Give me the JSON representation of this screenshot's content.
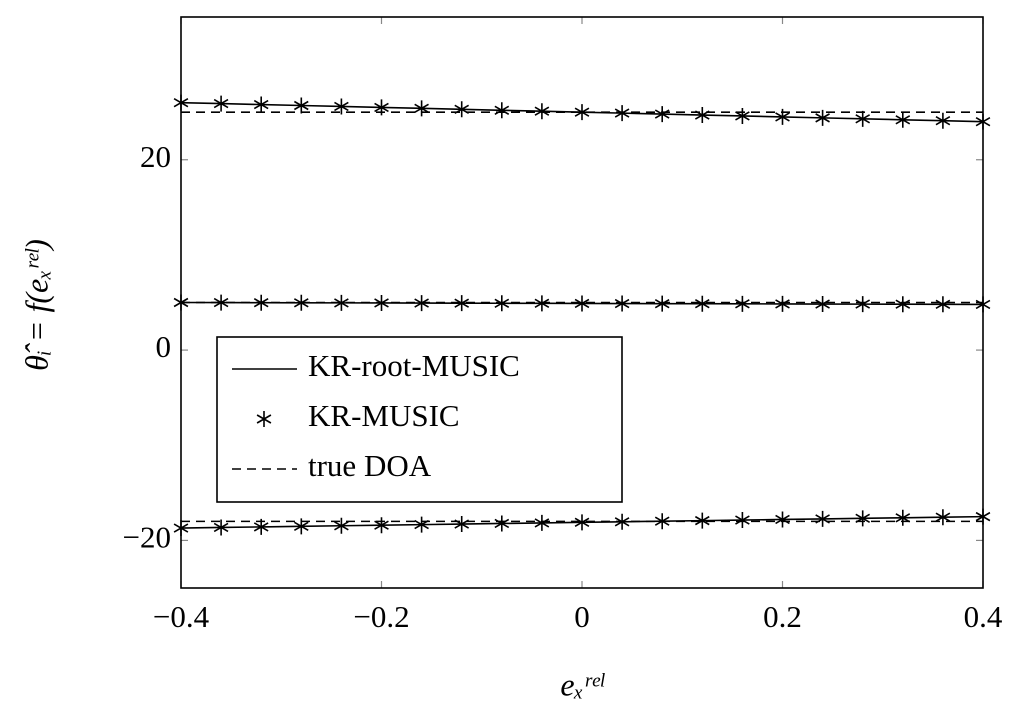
{
  "chart_data": {
    "type": "line",
    "xlabel": "eₓʳᵉˡ",
    "ylabel": "θ̂ᵢ = f(eₓʳᵉˡ)",
    "x": [
      -0.4,
      -0.36,
      -0.32,
      -0.28,
      -0.24,
      -0.2,
      -0.16,
      -0.12,
      -0.08,
      -0.04,
      0,
      0.04,
      0.08,
      0.12,
      0.16,
      0.2,
      0.24,
      0.28,
      0.32,
      0.36,
      0.4
    ],
    "xlim": [
      -0.4,
      0.4
    ],
    "xticks": [
      {
        "value": -0.4,
        "label": "−0.4"
      },
      {
        "value": -0.2,
        "label": "−0.2"
      },
      0,
      0.2,
      0.4
    ],
    "ylim": [
      -25,
      35
    ],
    "yticks": [
      {
        "value": -20,
        "label": "−20"
      },
      0,
      20
    ],
    "legend": "lower left",
    "series": [
      {
        "name": "KR-root-MUSIC",
        "color": "#000000",
        "style": "solid",
        "values": [
          [
            26,
            25.9,
            25.8,
            25.7,
            25.6,
            25.5,
            25.4,
            25.3,
            25.2,
            25.1,
            25,
            24.9,
            24.8,
            24.7,
            24.6,
            24.5,
            24.4,
            24.3,
            24.2,
            24.1,
            24
          ],
          [
            5,
            4.99,
            4.98,
            4.97,
            4.96,
            4.95,
            4.94,
            4.93,
            4.92,
            4.91,
            4.9,
            4.89,
            4.88,
            4.87,
            4.86,
            4.85,
            4.84,
            4.83,
            4.82,
            4.81,
            4.8
          ],
          [
            -18.7,
            -18.64,
            -18.58,
            -18.52,
            -18.46,
            -18.4,
            -18.34,
            -18.28,
            -18.22,
            -18.16,
            -18.1,
            -18.04,
            -17.98,
            -17.92,
            -17.86,
            -17.8,
            -17.74,
            -17.68,
            -17.62,
            -17.56,
            -17.5
          ]
        ]
      },
      {
        "name": "KR-MUSIC",
        "color": "#000000",
        "style": "marker",
        "values": [
          [
            26,
            25.9,
            25.8,
            25.7,
            25.6,
            25.5,
            25.4,
            25.3,
            25.2,
            25.1,
            25,
            24.9,
            24.8,
            24.7,
            24.6,
            24.5,
            24.4,
            24.3,
            24.2,
            24.1,
            24
          ],
          [
            5,
            4.99,
            4.98,
            4.97,
            4.96,
            4.95,
            4.94,
            4.93,
            4.92,
            4.91,
            4.9,
            4.89,
            4.88,
            4.87,
            4.86,
            4.85,
            4.84,
            4.83,
            4.82,
            4.81,
            4.8
          ],
          [
            -18.7,
            -18.64,
            -18.58,
            -18.52,
            -18.46,
            -18.4,
            -18.34,
            -18.28,
            -18.22,
            -18.16,
            -18.1,
            -18.04,
            -17.98,
            -17.92,
            -17.86,
            -17.8,
            -17.74,
            -17.68,
            -17.62,
            -17.56,
            -17.5
          ]
        ]
      },
      {
        "name": "true DOA",
        "color": "#000000",
        "style": "dashed",
        "values": [
          [
            25,
            25,
            25,
            25,
            25,
            25,
            25,
            25,
            25,
            25,
            25,
            25,
            25,
            25,
            25,
            25,
            25,
            25,
            25,
            25,
            25
          ],
          [
            5,
            5,
            5,
            5,
            5,
            5,
            5,
            5,
            5,
            5,
            5,
            5,
            5,
            5,
            5,
            5,
            5,
            5,
            5,
            5,
            5
          ],
          [
            -18,
            -18,
            -18,
            -18,
            -18,
            -18,
            -18,
            -18,
            -18,
            -18,
            -18,
            -18,
            -18,
            -18,
            -18,
            -18,
            -18,
            -18,
            -18,
            -18,
            -18
          ]
        ]
      }
    ]
  }
}
